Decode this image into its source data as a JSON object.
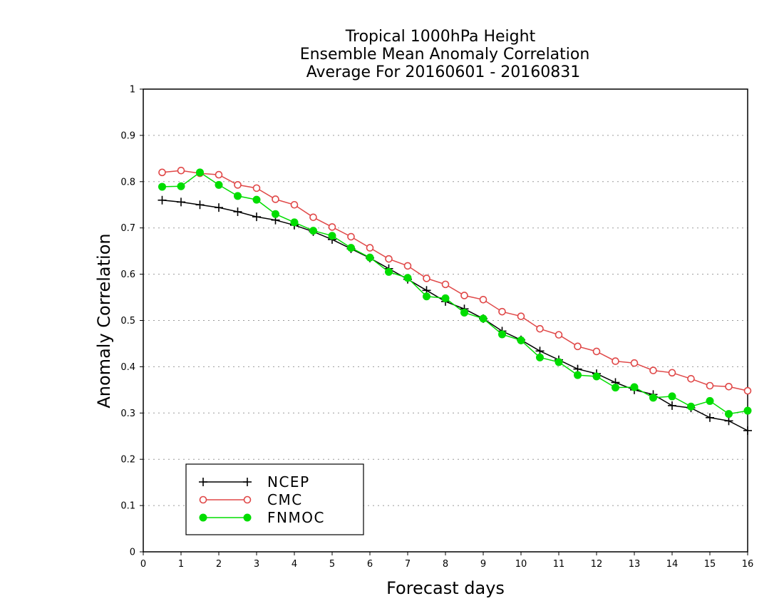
{
  "chart_data": {
    "type": "line",
    "title": [
      "Tropical 1000hPa Height",
      "Ensemble Mean Anomaly Correlation",
      "Average For 20160601 - 20160831"
    ],
    "xlabel": "Forecast days",
    "ylabel": "Anomaly Correlation",
    "xlim": [
      0,
      16
    ],
    "ylim": [
      0,
      1
    ],
    "xticks": [
      0,
      1,
      2,
      3,
      4,
      5,
      6,
      7,
      8,
      9,
      10,
      11,
      12,
      13,
      14,
      15,
      16
    ],
    "xtick_labels": [
      "0",
      "1",
      "2",
      "3",
      "4",
      "5",
      "6",
      "7",
      "8",
      "9",
      "10",
      "11",
      "12",
      "13",
      "14",
      "15",
      "16"
    ],
    "yticks": [
      0,
      0.1,
      0.2,
      0.3,
      0.4,
      0.5,
      0.6,
      0.7,
      0.8,
      0.9,
      1
    ],
    "ytick_labels": [
      "0",
      "0.1",
      "0.2",
      "0.3",
      "0.4",
      "0.5",
      "0.6",
      "0.7",
      "0.8",
      "0.9",
      "1"
    ],
    "grid": "horizontal dotted",
    "legend_position": "bottom-left",
    "x": [
      0.5,
      1,
      1.5,
      2,
      2.5,
      3,
      3.5,
      4,
      4.5,
      5,
      5.5,
      6,
      6.5,
      7,
      7.5,
      8,
      8.5,
      9,
      9.5,
      10,
      10.5,
      11,
      11.5,
      12,
      12.5,
      13,
      13.5,
      14,
      14.5,
      15,
      15.5,
      16
    ],
    "series": [
      {
        "name": "NCEP",
        "color": "#000000",
        "marker": "plus",
        "values": [
          0.76,
          0.756,
          0.75,
          0.744,
          0.735,
          0.724,
          0.717,
          0.706,
          0.692,
          0.675,
          0.655,
          0.635,
          0.612,
          0.589,
          0.565,
          0.541,
          0.525,
          0.504,
          0.477,
          0.458,
          0.434,
          0.415,
          0.395,
          0.385,
          0.366,
          0.35,
          0.34,
          0.316,
          0.311,
          0.29,
          0.283,
          0.262
        ]
      },
      {
        "name": "CMC",
        "color": "#e04848",
        "marker": "open-circle",
        "values": [
          0.82,
          0.824,
          0.818,
          0.815,
          0.793,
          0.786,
          0.762,
          0.75,
          0.723,
          0.702,
          0.681,
          0.657,
          0.633,
          0.618,
          0.591,
          0.578,
          0.554,
          0.545,
          0.519,
          0.509,
          0.482,
          0.469,
          0.444,
          0.433,
          0.412,
          0.408,
          0.392,
          0.387,
          0.374,
          0.359,
          0.357,
          0.348
        ]
      },
      {
        "name": "FNMOC",
        "color": "#00dd00",
        "marker": "filled-circle",
        "values": [
          0.789,
          0.79,
          0.82,
          0.793,
          0.769,
          0.761,
          0.73,
          0.712,
          0.694,
          0.683,
          0.657,
          0.636,
          0.605,
          0.592,
          0.552,
          0.548,
          0.517,
          0.504,
          0.47,
          0.457,
          0.42,
          0.41,
          0.382,
          0.379,
          0.355,
          0.356,
          0.333,
          0.336,
          0.314,
          0.326,
          0.298,
          0.305
        ]
      }
    ]
  }
}
